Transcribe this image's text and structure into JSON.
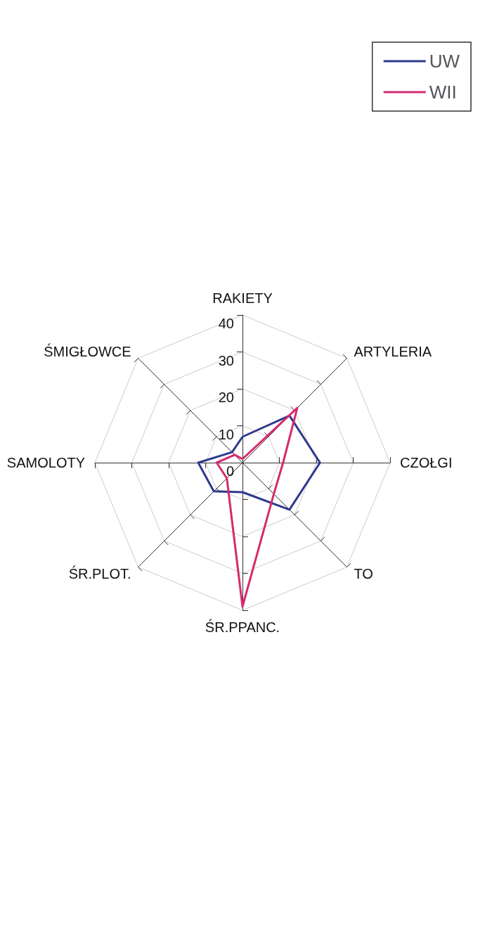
{
  "chart_data": {
    "type": "radar",
    "categories": [
      "RAKIETY",
      "ARTYLERIA",
      "CZOŁGI",
      "TO",
      "ŚR.PPANC.",
      "ŚR.PLOT.",
      "SAMOLOTY",
      "ŚMIGŁOWCE"
    ],
    "series": [
      {
        "name": "UW",
        "color": "#2e3a8c",
        "values": [
          7,
          18,
          21,
          18,
          8,
          11,
          12,
          4
        ]
      },
      {
        "name": "WII",
        "color": "#d62a6e",
        "values": [
          1,
          21,
          11,
          12,
          39,
          6,
          7,
          3
        ]
      }
    ],
    "grid": true,
    "ylim": [
      0,
      40
    ],
    "yticks": [
      0,
      10,
      20,
      30,
      40
    ],
    "legend": "right",
    "marker": "none"
  }
}
